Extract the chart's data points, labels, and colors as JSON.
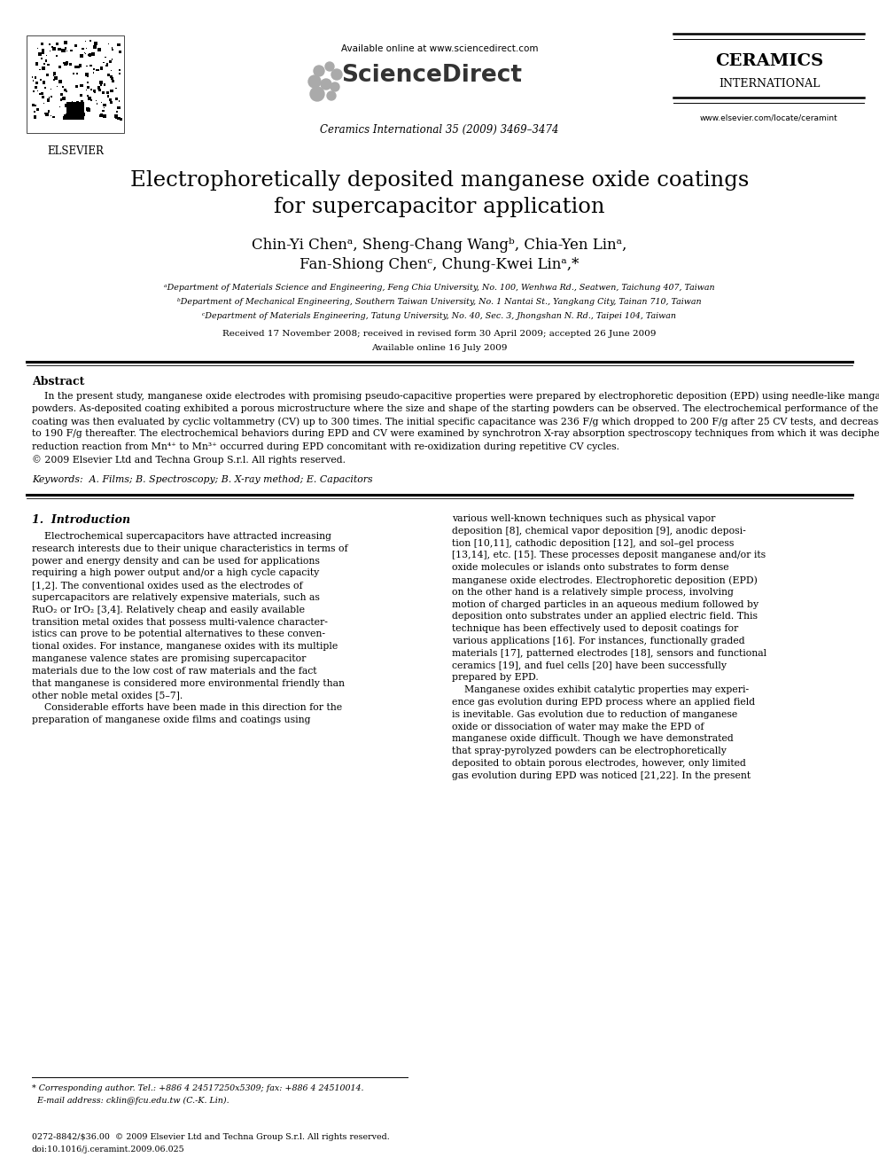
{
  "bg_color": "#ffffff",
  "title_paper": "Electrophoretically deposited manganese oxide coatings\nfor supercapacitor application",
  "authors_line1": "Chin-Yi Chenᵃ, Sheng-Chang Wangᵇ, Chia-Yen Linᵃ,",
  "authors_line2": "Fan-Shiong Chenᶜ, Chung-Kwei Linᵃ,*",
  "affiliations": [
    "ᵃDepartment of Materials Science and Engineering, Feng Chia University, No. 100, Wenhwa Rd., Seatwen, Taichung 407, Taiwan",
    "ᵇDepartment of Mechanical Engineering, Southern Taiwan University, No. 1 Nantai St., Yangkang City, Tainan 710, Taiwan",
    "ᶜDepartment of Materials Engineering, Tatung University, No. 40, Sec. 3, Jhongshan N. Rd., Taipei 104, Taiwan"
  ],
  "received_line1": "Received 17 November 2008; received in revised form 30 April 2009; accepted 26 June 2009",
  "received_line2": "Available online 16 July 2009",
  "journal_info": "Ceramics International 35 (2009) 3469–3474",
  "available_online": "Available online at www.sciencedirect.com",
  "website": "www.elsevier.com/locate/ceramint",
  "elsevier_text": "ELSEVIER",
  "abstract_title": "Abstract",
  "keywords_text": "Keywords:  A. Films; B. Spectroscopy; B. X-ray method; E. Capacitors",
  "intro_title": "1.  Introduction",
  "footer_line1": "* Corresponding author. Tel.: +886 4 24517250x5309; fax: +886 4 24510014.",
  "footer_line2": "  E-mail address: cklin@fcu.edu.tw (C.-K. Lin).",
  "footer_bottom1": "0272-8842/$36.00  © 2009 Elsevier Ltd and Techna Group S.r.l. All rights reserved.",
  "footer_bottom2": "doi:10.1016/j.ceramint.2009.06.025"
}
